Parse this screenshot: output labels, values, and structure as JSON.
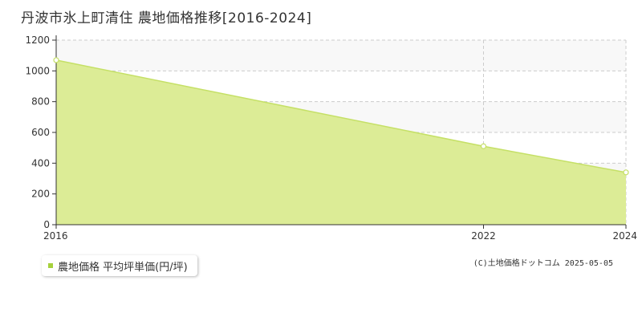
{
  "title": "丹波市氷上町清住 農地価格推移[2016-2024]",
  "legend": {
    "label": "農地価格 平均坪単価(円/坪)"
  },
  "credit": "(C)土地価格ドットコム 2025-05-05",
  "colors": {
    "fill": "#dcec96",
    "line": "#c5e066",
    "swatch": "#a6d13c",
    "plot_band": "#f8f8f8"
  },
  "chart_data": {
    "type": "area",
    "title": "丹波市氷上町清住 農地価格推移[2016-2024]",
    "xlabel": "",
    "ylabel": "",
    "x_ticks": [
      2016,
      2022,
      2024
    ],
    "y_ticks": [
      0,
      200,
      400,
      600,
      800,
      1000,
      1200
    ],
    "xlim": [
      2016,
      2024
    ],
    "ylim": [
      0,
      1200
    ],
    "grid": true,
    "legend_position": "bottom-left",
    "series": [
      {
        "name": "農地価格 平均坪単価(円/坪)",
        "x": [
          2016,
          2022,
          2024
        ],
        "y": [
          1070,
          510,
          340
        ]
      }
    ]
  }
}
